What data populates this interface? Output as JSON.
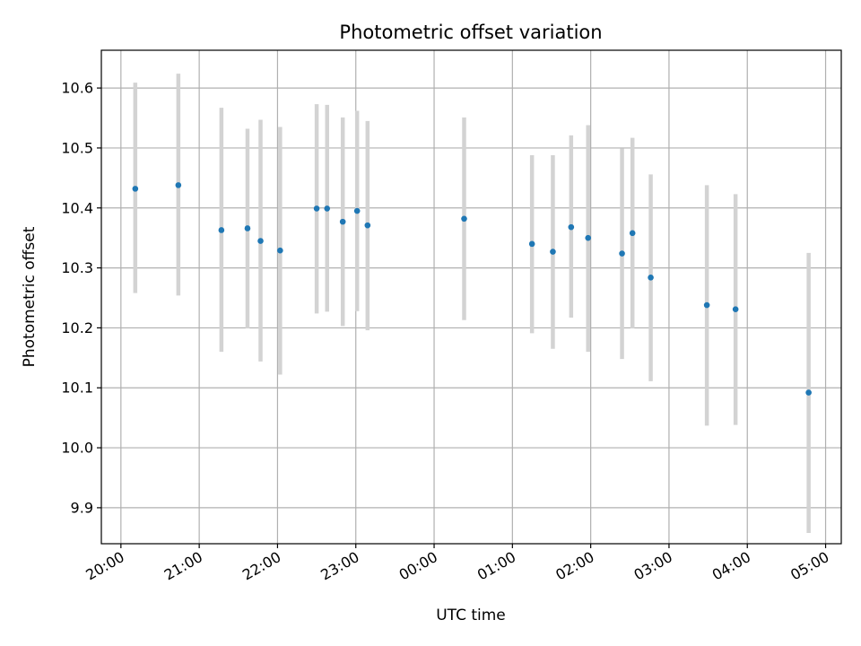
{
  "chart_data": {
    "type": "scatter",
    "title": "Photometric offset variation",
    "xlabel": "UTC time",
    "ylabel": "Photometric offset",
    "x_tick_labels": [
      "20:00",
      "21:00",
      "22:00",
      "23:00",
      "00:00",
      "01:00",
      "02:00",
      "03:00",
      "04:00",
      "05:00"
    ],
    "y_ticks": [
      9.9,
      10.0,
      10.1,
      10.2,
      10.3,
      10.4,
      10.5,
      10.6
    ],
    "y_tick_labels": [
      "9.9",
      "10.0",
      "10.1",
      "10.2",
      "10.3",
      "10.4",
      "10.5",
      "10.6"
    ],
    "xlim_hours": [
      19.75,
      29.2
    ],
    "ylim": [
      9.84,
      10.663
    ],
    "grid": true,
    "point_color": "#1f77b4",
    "errorbar_color": "#d3d3d3",
    "points": [
      {
        "t": "20:11",
        "y": 10.432,
        "lo": 10.258,
        "hi": 10.609
      },
      {
        "t": "20:44",
        "y": 10.438,
        "lo": 10.254,
        "hi": 10.624
      },
      {
        "t": "21:17",
        "y": 10.363,
        "lo": 10.16,
        "hi": 10.567
      },
      {
        "t": "21:37",
        "y": 10.366,
        "lo": 10.199,
        "hi": 10.532
      },
      {
        "t": "21:47",
        "y": 10.345,
        "lo": 10.144,
        "hi": 10.547
      },
      {
        "t": "22:02",
        "y": 10.329,
        "lo": 10.122,
        "hi": 10.535
      },
      {
        "t": "22:30",
        "y": 10.399,
        "lo": 10.224,
        "hi": 10.573
      },
      {
        "t": "22:38",
        "y": 10.399,
        "lo": 10.227,
        "hi": 10.572
      },
      {
        "t": "22:50",
        "y": 10.377,
        "lo": 10.203,
        "hi": 10.551
      },
      {
        "t": "23:01",
        "y": 10.395,
        "lo": 10.228,
        "hi": 10.562
      },
      {
        "t": "23:09",
        "y": 10.371,
        "lo": 10.196,
        "hi": 10.545
      },
      {
        "t": "00:23",
        "y": 10.382,
        "lo": 10.213,
        "hi": 10.551
      },
      {
        "t": "01:15",
        "y": 10.34,
        "lo": 10.191,
        "hi": 10.488
      },
      {
        "t": "01:31",
        "y": 10.327,
        "lo": 10.165,
        "hi": 10.488
      },
      {
        "t": "01:45",
        "y": 10.368,
        "lo": 10.217,
        "hi": 10.521
      },
      {
        "t": "01:58",
        "y": 10.35,
        "lo": 10.16,
        "hi": 10.538
      },
      {
        "t": "02:24",
        "y": 10.324,
        "lo": 10.148,
        "hi": 10.499
      },
      {
        "t": "02:32",
        "y": 10.358,
        "lo": 10.199,
        "hi": 10.517
      },
      {
        "t": "02:46",
        "y": 10.284,
        "lo": 10.111,
        "hi": 10.456
      },
      {
        "t": "03:29",
        "y": 10.238,
        "lo": 10.037,
        "hi": 10.438
      },
      {
        "t": "03:51",
        "y": 10.231,
        "lo": 10.038,
        "hi": 10.423
      },
      {
        "t": "04:47",
        "y": 10.092,
        "lo": 9.858,
        "hi": 10.325
      }
    ]
  }
}
